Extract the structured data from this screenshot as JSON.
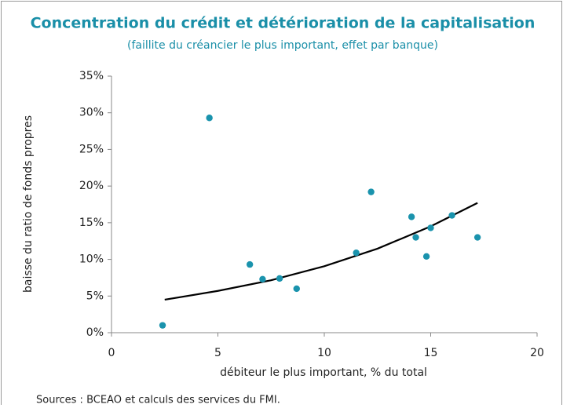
{
  "chart_data": {
    "type": "scatter",
    "title": "Concentration du crédit et détérioration de la capitalisation",
    "subtitle": "(faillite du créancier le plus important, effet par banque)",
    "x_label": "débiteur le plus important, % du total",
    "y_label": "baisse du ratio de fonds propres",
    "source": "Sources : BCEAO et calculs des services du FMI.",
    "xlim": [
      0,
      20
    ],
    "xticks": [
      0,
      5,
      10,
      15,
      20
    ],
    "ylim": [
      0,
      35
    ],
    "yticks": [
      {
        "value": 0,
        "label": "0%"
      },
      {
        "value": 5,
        "label": "5%"
      },
      {
        "value": 10,
        "label": "10%"
      },
      {
        "value": 15,
        "label": "15%"
      },
      {
        "value": 20,
        "label": "20%"
      },
      {
        "value": 25,
        "label": "25%"
      },
      {
        "value": 30,
        "label": "30%"
      },
      {
        "value": 35,
        "label": "35%"
      }
    ],
    "series": [
      {
        "color": "#1a93ad",
        "x": [
          2.4,
          4.6,
          6.5,
          7.1,
          7.9,
          8.7,
          11.5,
          12.2,
          14.1,
          14.3,
          14.8,
          15.0,
          16.0,
          17.2
        ],
        "values": [
          1.0,
          29.3,
          9.3,
          7.3,
          7.4,
          6.0,
          10.9,
          19.2,
          15.8,
          13.0,
          10.4,
          14.3,
          16.0,
          13.0
        ]
      }
    ],
    "trendline": {
      "color": "#000000",
      "x": [
        2.5,
        5,
        7.5,
        10,
        12.5,
        15,
        17.2
      ],
      "values": [
        4.5,
        5.7,
        7.15,
        9.06,
        11.46,
        14.5,
        17.7
      ]
    },
    "grid": false
  }
}
